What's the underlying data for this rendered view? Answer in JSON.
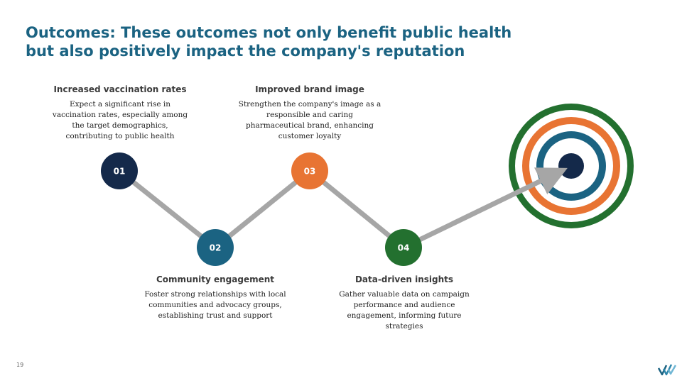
{
  "title": "Outcomes: These outcomes not only benefit public health but also positively impact the company's reputation",
  "page_number": "19",
  "steps": [
    {
      "number": "01",
      "heading": "Increased vaccination rates",
      "text": "Expect a significant rise in vaccination rates, especially among the target demographics, contributing to public health",
      "color": "#14294a"
    },
    {
      "number": "02",
      "heading": "Community engagement",
      "text": "Foster strong relationships with local communities and advocacy groups, establishing trust and support",
      "color": "#1b6382"
    },
    {
      "number": "03",
      "heading": "Improved brand image",
      "text": "Strengthen the company's image as a responsible and caring pharmaceutical brand, enhancing customer loyalty",
      "color": "#e87433"
    },
    {
      "number": "04",
      "heading": "Data-driven insights",
      "text": "Gather valuable data on campaign performance and audience engagement, informing future strategies",
      "color": "#23702f"
    }
  ],
  "target": {
    "ring_colors": [
      "#23702f",
      "#e87433",
      "#1b6382",
      "#14294a"
    ]
  },
  "connector_color": "#a6a6a6",
  "logo_icon": "check-chevrons-logo"
}
